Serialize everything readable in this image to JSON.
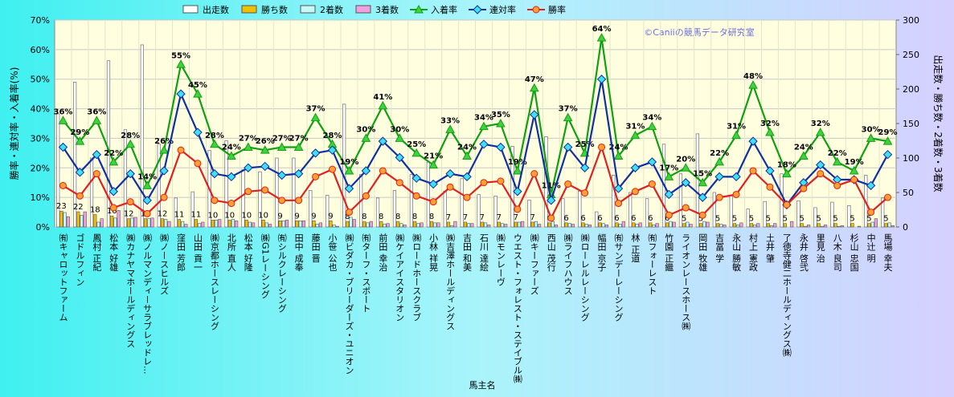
{
  "chart_data": {
    "type": "bar",
    "annotation": "©Caniiの競馬データ研究室",
    "xlabel": "馬主名",
    "ylabel": "勝率・連対率・入着率(%)",
    "y2label": "出走数・勝ち数・2着数・3着数",
    "categories": [
      "㈲キャロットファーム",
      "ゴドルフィン",
      "鳳村 正紀",
      "松本 好雄",
      "㈱カナヤマホールディングス",
      "㈱ノルマンディーサラブレッドレ...",
      "㈱ノースヒルズ",
      "窪田 芳郎",
      "山田 貢一",
      "㈱京都ホースレーシング",
      "北所 直人",
      "松本 好隆",
      "㈱G1レーシング",
      "㈲シルクレーシング",
      "田中 成奉",
      "藤田 晋",
      "小笹 公也",
      "㈱ビダカ・ブリーダーズ・ユニオン",
      "㈲ターフ・スポート",
      "前田 幸治",
      "㈱ケイアイスタリオン",
      "㈱ロードホースクラブ",
      "小林 祥晃",
      "㈱吉澤ホールディングス",
      "吉田 和美",
      "石川 達絵",
      "㈱モンレーヴ",
      "ウエスト・フォレスト・ステイブル㈱",
      "㈱キーファーズ",
      "西山 茂行",
      "㈱ライフハウス",
      "㈱ローレルレーシング",
      "幅田 京子",
      "㈲サンデーレーシング",
      "林 正道",
      "㈲フォーレスト",
      "竹園 正繼",
      "ライオンレースホース㈱",
      "岡田 牧雄",
      "吉冨 学",
      "永山 勝敏",
      "村上 憲政",
      "土井 肇",
      "了徳寺健二ホールディングス㈱",
      "永井 啓弐",
      "里見 治",
      "八木 良司",
      "杉山 忠国",
      "中辻 明",
      "馬場 幸夫"
    ],
    "ylim": [
      0,
      70
    ],
    "yticks": [
      {
        "value": 0,
        "label": "0%"
      },
      {
        "value": 10,
        "label": "10%"
      },
      {
        "value": 20,
        "label": "20%"
      },
      {
        "value": 30,
        "label": "30%"
      },
      {
        "value": 40,
        "label": "40%"
      },
      {
        "value": 50,
        "label": "50%"
      },
      {
        "value": 60,
        "label": "60%"
      },
      {
        "value": 70,
        "label": "70%"
      }
    ],
    "y2lim": [
      0,
      300
    ],
    "y2ticks": [
      0,
      50,
      100,
      150,
      200,
      250,
      300
    ],
    "grid": true,
    "legend": "top",
    "series": [
      {
        "name": "出走数",
        "type": "bar",
        "axis": "y2",
        "color": "#ffffff",
        "values": [
          164,
          210,
          100,
          241,
          141,
          264,
          120,
          42,
          51,
          111,
          125,
          83,
          80,
          100,
          100,
          53,
          46,
          178,
          76,
          42,
          53,
          76,
          94,
          52,
          70,
          47,
          45,
          117,
          39,
          131,
          41,
          52,
          22,
          75,
          50,
          41,
          120,
          77,
          135,
          50,
          45,
          26,
          37,
          77,
          38,
          28,
          36,
          31,
          75,
          42
        ]
      },
      {
        "name": "勝ち数",
        "type": "bar",
        "axis": "y2",
        "color": "#f0c000",
        "labels": true,
        "values": [
          23,
          22,
          18,
          16,
          12,
          12,
          12,
          11,
          11,
          10,
          10,
          10,
          10,
          9,
          9,
          9,
          9,
          8,
          8,
          8,
          8,
          8,
          8,
          7,
          7,
          7,
          7,
          7,
          7,
          6,
          6,
          6,
          6,
          6,
          6,
          6,
          6,
          5,
          5,
          5,
          5,
          5,
          5,
          5,
          5,
          5,
          5,
          5,
          5,
          5
        ]
      },
      {
        "name": "2着数",
        "type": "bar",
        "axis": "y2",
        "color": "#c8f8f8",
        "values": [
          21,
          17,
          7,
          13,
          13,
          12,
          11,
          8,
          5,
          10,
          11,
          7,
          6,
          9,
          9,
          4,
          3,
          14,
          6,
          4,
          5,
          5,
          6,
          2,
          5,
          6,
          5,
          7,
          8,
          8,
          5,
          4,
          5,
          4,
          4,
          3,
          8,
          7,
          8,
          4,
          3,
          3,
          2,
          0,
          1,
          1,
          1,
          0,
          7,
          6
        ]
      },
      {
        "name": "3着数",
        "type": "bar",
        "axis": "y2",
        "color": "#f0a0e0",
        "values": [
          15,
          22,
          12,
          24,
          14,
          13,
          8,
          4,
          7,
          11,
          9,
          6,
          4,
          10,
          9,
          6,
          1,
          11,
          8,
          5,
          3,
          6,
          6,
          8,
          5,
          3,
          4,
          8,
          4,
          3,
          4,
          3,
          3,
          8,
          6,
          5,
          7,
          4,
          7,
          3,
          6,
          5,
          5,
          8,
          3,
          3,
          2,
          1,
          12,
          2
        ]
      },
      {
        "name": "入着率",
        "type": "line",
        "color": "#10a010",
        "marker": "triangle",
        "marker_color": "#40d040",
        "values": [
          36,
          29,
          36,
          22,
          28,
          14,
          26,
          55,
          45,
          28,
          24,
          27,
          26,
          27,
          27,
          37,
          28,
          19,
          30,
          41,
          30,
          25,
          21,
          33,
          24,
          34,
          35,
          19,
          47,
          11,
          37,
          25,
          64,
          24,
          31,
          34,
          17,
          20,
          15,
          22,
          31,
          48,
          32,
          18,
          24,
          32,
          22,
          19,
          30,
          29
        ],
        "value_labels": [
          "36%",
          "29%",
          "36%",
          "22%",
          "28%",
          "14%",
          "26%",
          "55%",
          "45%",
          "28%",
          "24%",
          "27%",
          "26%",
          "27%",
          "27%",
          "37%",
          "28%",
          "19%",
          "30%",
          "41%",
          "30%",
          "25%",
          "21%",
          "33%",
          "24%",
          "34%",
          "35%",
          "19%",
          "47%",
          "11%",
          "37%",
          "25%",
          "64%",
          "24%",
          "31%",
          "34%",
          "17%",
          "20%",
          "15%",
          "22%",
          "31%",
          "48%",
          "32%",
          "18%",
          "24%",
          "32%",
          "22%",
          "19%",
          "30%",
          "29%"
        ]
      },
      {
        "name": "連対率",
        "type": "line",
        "color": "#1030a0",
        "marker": "diamond",
        "marker_color": "#40e0f0",
        "values": [
          27,
          18.5,
          24.5,
          12,
          18,
          9,
          19,
          45,
          32,
          18,
          17,
          20,
          20.5,
          17.5,
          18,
          25,
          26,
          13,
          19,
          29,
          23.5,
          16.5,
          14.5,
          18,
          17,
          28,
          27,
          12,
          38,
          9,
          27,
          20,
          50,
          13,
          20,
          22,
          11,
          15,
          10,
          17,
          17,
          29,
          19,
          7.5,
          15,
          21,
          16,
          16,
          14,
          24.5
        ]
      },
      {
        "name": "勝率",
        "type": "line",
        "color": "#e02020",
        "marker": "circle",
        "marker_color": "#ffa030",
        "values": [
          14,
          10.5,
          18,
          6.5,
          8.5,
          4.5,
          10,
          26,
          21.5,
          9,
          8,
          12,
          12.5,
          9,
          9,
          17,
          19.5,
          5,
          10.5,
          19,
          15,
          10.5,
          8.5,
          13.5,
          10,
          15,
          15.5,
          6,
          18,
          3,
          14.5,
          11.5,
          27,
          8,
          12,
          14.5,
          4,
          6.5,
          4,
          10,
          11,
          19,
          13.5,
          7.5,
          13,
          18,
          14,
          16,
          5,
          10
        ]
      }
    ]
  }
}
